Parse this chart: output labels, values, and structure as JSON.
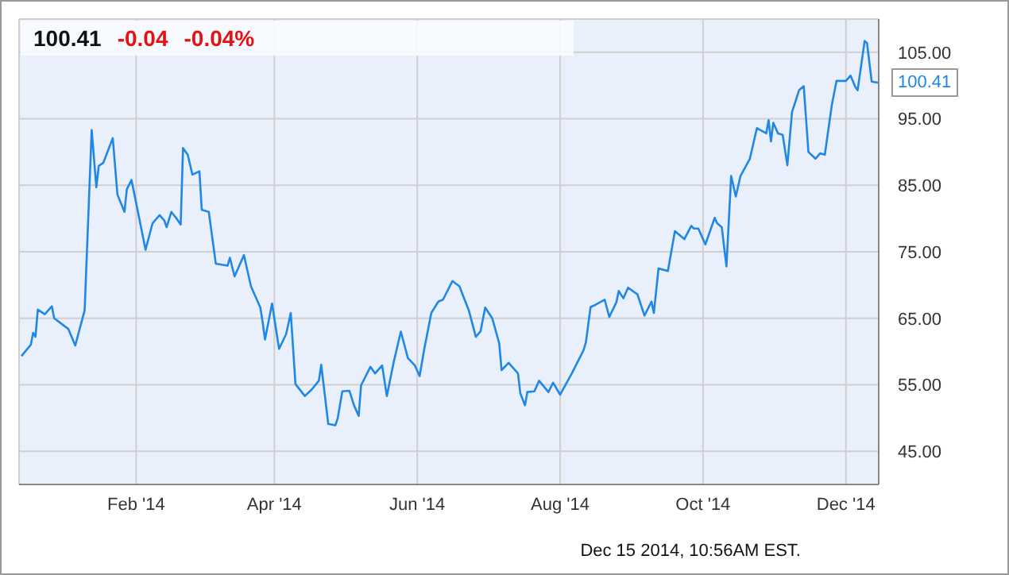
{
  "chart_data": {
    "type": "line",
    "series": [
      {
        "color": "#1f87e5",
        "x": [
          "2013-12-14",
          "2013-12-18",
          "2013-12-19",
          "2013-12-20",
          "2013-12-21",
          "2013-12-24",
          "2013-12-27",
          "2013-12-28",
          "2014-01-03",
          "2014-01-06",
          "2014-01-10",
          "2014-01-13",
          "2014-01-15",
          "2014-01-16",
          "2014-01-18",
          "2014-01-22",
          "2014-01-24",
          "2014-01-27",
          "2014-01-28",
          "2014-01-30",
          "2014-02-05",
          "2014-02-08",
          "2014-02-11",
          "2014-02-13",
          "2014-02-14",
          "2014-02-16",
          "2014-02-18",
          "2014-02-20",
          "2014-02-21",
          "2014-02-23",
          "2014-02-25",
          "2014-02-28",
          "2014-03-01",
          "2014-03-04",
          "2014-03-07",
          "2014-03-12",
          "2014-03-13",
          "2014-03-15",
          "2014-03-19",
          "2014-03-22",
          "2014-03-26",
          "2014-03-27",
          "2014-03-28",
          "2014-03-31",
          "2014-04-03",
          "2014-04-06",
          "2014-04-08",
          "2014-04-10",
          "2014-04-14",
          "2014-04-17",
          "2014-04-20",
          "2014-04-21",
          "2014-04-24",
          "2014-04-27",
          "2014-04-28",
          "2014-04-30",
          "2014-05-03",
          "2014-05-05",
          "2014-05-07",
          "2014-05-08",
          "2014-05-12",
          "2014-05-14",
          "2014-05-17",
          "2014-05-19",
          "2014-05-22",
          "2014-05-25",
          "2014-05-28",
          "2014-05-31",
          "2014-06-02",
          "2014-06-04",
          "2014-06-07",
          "2014-06-10",
          "2014-06-12",
          "2014-06-16",
          "2014-06-19",
          "2014-06-23",
          "2014-06-26",
          "2014-06-28",
          "2014-06-30",
          "2014-07-03",
          "2014-07-06",
          "2014-07-07",
          "2014-07-10",
          "2014-07-14",
          "2014-07-15",
          "2014-07-17",
          "2014-07-18",
          "2014-07-21",
          "2014-07-23",
          "2014-07-27",
          "2014-07-29",
          "2014-08-01",
          "2014-08-06",
          "2014-08-11",
          "2014-08-12",
          "2014-08-14",
          "2014-08-16",
          "2014-08-20",
          "2014-08-22",
          "2014-08-25",
          "2014-08-26",
          "2014-08-28",
          "2014-08-30",
          "2014-09-03",
          "2014-09-06",
          "2014-09-09",
          "2014-09-10",
          "2014-09-12",
          "2014-09-16",
          "2014-09-19",
          "2014-09-23",
          "2014-09-26",
          "2014-09-27",
          "2014-09-29",
          "2014-10-02",
          "2014-10-06",
          "2014-10-07",
          "2014-10-09",
          "2014-10-11",
          "2014-10-13",
          "2014-10-15",
          "2014-10-17",
          "2014-10-21",
          "2014-10-24",
          "2014-10-28",
          "2014-10-29",
          "2014-10-30",
          "2014-10-31",
          "2014-11-02",
          "2014-11-04",
          "2014-11-06",
          "2014-11-08",
          "2014-11-11",
          "2014-11-13",
          "2014-11-15",
          "2014-11-18",
          "2014-11-20",
          "2014-11-22",
          "2014-11-25",
          "2014-11-27",
          "2014-12-01",
          "2014-12-03",
          "2014-12-05",
          "2014-12-06",
          "2014-12-09",
          "2014-12-10",
          "2014-12-12",
          "2014-12-15"
        ],
        "values": [
          59.3,
          61.0,
          62.8,
          62.2,
          66.3,
          65.6,
          66.8,
          65.0,
          63.4,
          60.9,
          66.2,
          93.3,
          84.7,
          87.9,
          88.4,
          92.1,
          83.6,
          81.0,
          84.4,
          85.8,
          75.3,
          79.3,
          80.5,
          79.7,
          78.7,
          81.0,
          80.1,
          79.1,
          90.6,
          89.6,
          86.6,
          87.1,
          81.3,
          81.0,
          73.2,
          72.9,
          74.1,
          71.3,
          74.5,
          69.8,
          66.6,
          64.4,
          61.8,
          67.2,
          60.4,
          62.6,
          65.8,
          55.1,
          53.3,
          54.3,
          55.6,
          58.0,
          49.1,
          48.9,
          49.9,
          54.0,
          54.1,
          51.9,
          50.3,
          54.9,
          57.7,
          56.7,
          57.9,
          53.3,
          58.5,
          63.0,
          59.0,
          57.9,
          56.3,
          60.4,
          65.8,
          67.5,
          67.8,
          70.6,
          69.8,
          66.2,
          62.2,
          63.0,
          66.6,
          65.0,
          61.2,
          57.2,
          58.3,
          56.7,
          53.7,
          51.9,
          53.9,
          54.0,
          55.6,
          53.9,
          55.3,
          53.5,
          56.7,
          60.2,
          61.4,
          66.7,
          67.0,
          67.8,
          65.2,
          67.4,
          69.1,
          68.0,
          69.6,
          68.6,
          65.4,
          67.5,
          65.8,
          72.5,
          72.1,
          78.1,
          76.9,
          78.9,
          78.5,
          78.5,
          76.1,
          80.1,
          79.3,
          78.7,
          72.8,
          86.4,
          83.3,
          86.4,
          89.0,
          93.6,
          92.8,
          94.8,
          91.6,
          94.4,
          92.8,
          92.6,
          88.0,
          96.0,
          99.3,
          99.9,
          90.0,
          89.0,
          89.8,
          89.6,
          97.1,
          100.7,
          100.7,
          101.5,
          99.8,
          99.3,
          106.7,
          106.4,
          100.6,
          100.41
        ]
      }
    ],
    "xlim": [
      "2013-12-13",
      "2014-12-15"
    ],
    "xticks": [
      {
        "value": "2014-02-01",
        "label": "Feb '14"
      },
      {
        "value": "2014-04-01",
        "label": "Apr '14"
      },
      {
        "value": "2014-06-01",
        "label": "Jun '14"
      },
      {
        "value": "2014-08-01",
        "label": "Aug '14"
      },
      {
        "value": "2014-10-01",
        "label": "Oct '14"
      },
      {
        "value": "2014-12-01",
        "label": "Dec '14"
      }
    ],
    "ylim": [
      40,
      110
    ],
    "yticks": [
      {
        "value": 45,
        "label": "45.00"
      },
      {
        "value": 55,
        "label": "55.00"
      },
      {
        "value": 65,
        "label": "65.00"
      },
      {
        "value": 75,
        "label": "75.00"
      },
      {
        "value": 85,
        "label": "85.00"
      },
      {
        "value": 95,
        "label": "95.00"
      },
      {
        "value": 105,
        "label": "105.00"
      }
    ],
    "grid": true,
    "annotations": [
      "100.41",
      "-0.04",
      "-0.04%",
      {
        "text": "100.41",
        "x": "2014-12-15",
        "y": 100.41
      },
      "Dec 15 2014, 10:56AM EST."
    ]
  }
}
